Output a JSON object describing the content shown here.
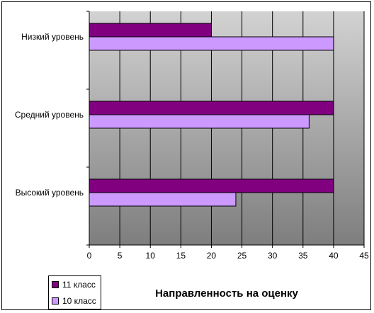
{
  "chart_data": {
    "type": "bar",
    "orientation": "horizontal",
    "categories": [
      "Низкий уровень",
      "Средний уровень",
      "Высокий уровень"
    ],
    "series": [
      {
        "name": "11 класс",
        "values": [
          20,
          40,
          40
        ],
        "color": "#800080"
      },
      {
        "name": "10 класс",
        "values": [
          40,
          36,
          24
        ],
        "color": "#cc99ff"
      }
    ],
    "xlabel": "Направленность на оценку",
    "xlim": [
      0,
      45
    ],
    "xticks": [
      0,
      5,
      10,
      15,
      20,
      25,
      30,
      35,
      40,
      45
    ],
    "grid": true,
    "legend_position": "bottom-left",
    "plot_background": "gradient light gray to dark gray"
  }
}
